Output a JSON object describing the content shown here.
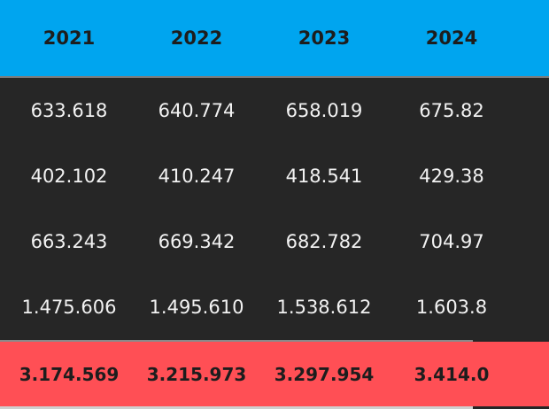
{
  "table": {
    "headers": [
      "2021",
      "2022",
      "2023",
      "2024"
    ],
    "rows": [
      [
        "633.618",
        "640.774",
        "658.019",
        "675.82"
      ],
      [
        "402.102",
        "410.247",
        "418.541",
        "429.38"
      ],
      [
        "663.243",
        "669.342",
        "682.782",
        "704.97"
      ],
      [
        "1.475.606",
        "1.495.610",
        "1.538.612",
        "1.603.8"
      ]
    ],
    "totals": [
      "3.174.569",
      "3.215.973",
      "3.297.954",
      "3.414.0"
    ]
  },
  "colors": {
    "header_bg": "#00a5ef",
    "body_bg": "#262626",
    "total_bg": "#ff4f55"
  }
}
